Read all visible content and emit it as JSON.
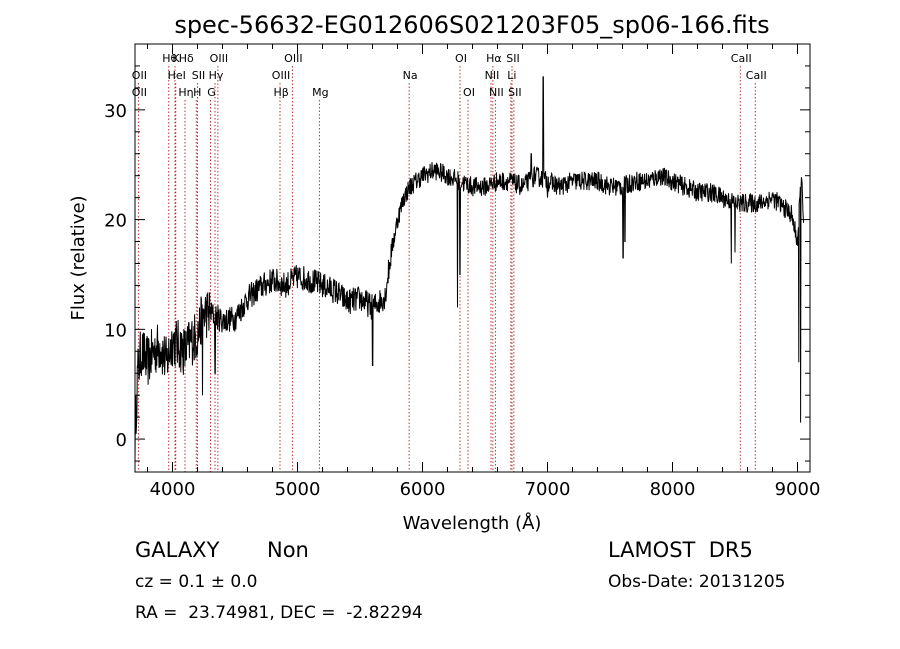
{
  "chart_data": {
    "type": "line",
    "title": "spec-56632-EG012606S021203F05_sp06-166.fits",
    "xlabel": "Wavelength (Å)",
    "ylabel": "Flux (relative)",
    "xlim": [
      3700,
      9100
    ],
    "ylim": [
      -3,
      36
    ],
    "xticks": [
      4000,
      5000,
      6000,
      7000,
      8000,
      9000
    ],
    "yticks": [
      0,
      10,
      20,
      30
    ],
    "grid": false,
    "line_color": "#000000",
    "marker_color": "#b22222",
    "spectrum_anchors": [
      [
        3700,
        0
      ],
      [
        3720,
        6
      ],
      [
        3750,
        8
      ],
      [
        3800,
        7
      ],
      [
        3850,
        8
      ],
      [
        3900,
        8.5
      ],
      [
        3950,
        7
      ],
      [
        4000,
        9
      ],
      [
        4050,
        8.5
      ],
      [
        4100,
        8
      ],
      [
        4150,
        9
      ],
      [
        4200,
        9.5
      ],
      [
        4250,
        11.5
      ],
      [
        4300,
        11.5
      ],
      [
        4400,
        10.8
      ],
      [
        4500,
        11.0
      ],
      [
        4600,
        12.8
      ],
      [
        4700,
        13.8
      ],
      [
        4800,
        14.5
      ],
      [
        4900,
        14.0
      ],
      [
        5000,
        14.8
      ],
      [
        5100,
        14.5
      ],
      [
        5200,
        14.0
      ],
      [
        5300,
        13.5
      ],
      [
        5400,
        12.5
      ],
      [
        5500,
        12.8
      ],
      [
        5600,
        12.0
      ],
      [
        5700,
        13.0
      ],
      [
        5750,
        17.0
      ],
      [
        5800,
        20.0
      ],
      [
        5850,
        22.0
      ],
      [
        5900,
        23.0
      ],
      [
        6000,
        24.0
      ],
      [
        6100,
        24.5
      ],
      [
        6200,
        24.0
      ],
      [
        6300,
        23.5
      ],
      [
        6400,
        23.0
      ],
      [
        6500,
        23.0
      ],
      [
        6600,
        23.5
      ],
      [
        6700,
        23.5
      ],
      [
        6800,
        23.0
      ],
      [
        6900,
        24.0
      ],
      [
        7000,
        23.5
      ],
      [
        7100,
        23.0
      ],
      [
        7200,
        23.5
      ],
      [
        7300,
        23.5
      ],
      [
        7400,
        23.5
      ],
      [
        7500,
        23.0
      ],
      [
        7600,
        23.0
      ],
      [
        7700,
        23.5
      ],
      [
        7800,
        23.5
      ],
      [
        7900,
        24.0
      ],
      [
        8000,
        23.5
      ],
      [
        8100,
        23.0
      ],
      [
        8200,
        22.5
      ],
      [
        8300,
        22.5
      ],
      [
        8400,
        22.0
      ],
      [
        8500,
        21.5
      ],
      [
        8600,
        21.5
      ],
      [
        8700,
        21.5
      ],
      [
        8800,
        22.0
      ],
      [
        8900,
        21.0
      ],
      [
        8950,
        20.5
      ],
      [
        9000,
        18.0
      ],
      [
        9030,
        24.0
      ],
      [
        9050,
        20.0
      ]
    ],
    "spectrum_features": [
      {
        "x": 4240,
        "y": 4.0
      },
      {
        "x": 4340,
        "y": 6.0
      },
      {
        "x": 5600,
        "y": 6.7
      },
      {
        "x": 6280,
        "y": 12.0
      },
      {
        "x": 6300,
        "y": 15.0
      },
      {
        "x": 6870,
        "y": 26.0
      },
      {
        "x": 6965,
        "y": 33.0
      },
      {
        "x": 7000,
        "y": 22.0
      },
      {
        "x": 7605,
        "y": 16.5
      },
      {
        "x": 7620,
        "y": 18.0
      },
      {
        "x": 8470,
        "y": 16.0
      },
      {
        "x": 8500,
        "y": 17.0
      },
      {
        "x": 9010,
        "y": 7.0
      },
      {
        "x": 9025,
        "y": 1.5
      }
    ],
    "lines": [
      {
        "label": "Hθ",
        "x": 3970,
        "row": 0
      },
      {
        "label": "OII",
        "x": 3727,
        "row": 1
      },
      {
        "label": "OII",
        "x": 3727,
        "row": 2
      },
      {
        "label": "K",
        "x": 4020,
        "row": 0
      },
      {
        "label": "HeI",
        "x": 4026,
        "row": 1
      },
      {
        "label": "Hη",
        "x": 4100,
        "row": 2
      },
      {
        "label": "Hδ",
        "x": 4102,
        "row": 0
      },
      {
        "label": "SII",
        "x": 4200,
        "row": 1
      },
      {
        "label": "H",
        "x": 4190,
        "row": 2
      },
      {
        "label": "OIII",
        "x": 4363,
        "row": 0
      },
      {
        "label": "Hγ",
        "x": 4340,
        "row": 1
      },
      {
        "label": "G",
        "x": 4304,
        "row": 2
      },
      {
        "label": "OIII",
        "x": 4959,
        "row": 0
      },
      {
        "label": "OIII",
        "x": 4860,
        "row": 1
      },
      {
        "label": "Hβ",
        "x": 4861,
        "row": 2
      },
      {
        "label": "Mg",
        "x": 5175,
        "row": 2
      },
      {
        "label": "Na",
        "x": 5893,
        "row": 1
      },
      {
        "label": "OI",
        "x": 6300,
        "row": 0
      },
      {
        "label": "OI",
        "x": 6364,
        "row": 2
      },
      {
        "label": "Hα",
        "x": 6563,
        "row": 0
      },
      {
        "label": "NII",
        "x": 6548,
        "row": 1
      },
      {
        "label": "NII",
        "x": 6583,
        "row": 2
      },
      {
        "label": "SII",
        "x": 6716,
        "row": 0
      },
      {
        "label": "Li",
        "x": 6707,
        "row": 1
      },
      {
        "label": "SII",
        "x": 6731,
        "row": 2
      },
      {
        "label": "CaII",
        "x": 8542,
        "row": 0
      },
      {
        "label": "CaII",
        "x": 8662,
        "row": 1
      }
    ]
  },
  "info": {
    "object_class": "GALAXY",
    "subclass": "Non",
    "survey": "LAMOST  DR5",
    "redshift_text": "cz = 0.1 ± 0.0",
    "obs_date": "Obs-Date: 20131205",
    "coords_text": "RA =  23.74981, DEC =  -2.82294"
  }
}
